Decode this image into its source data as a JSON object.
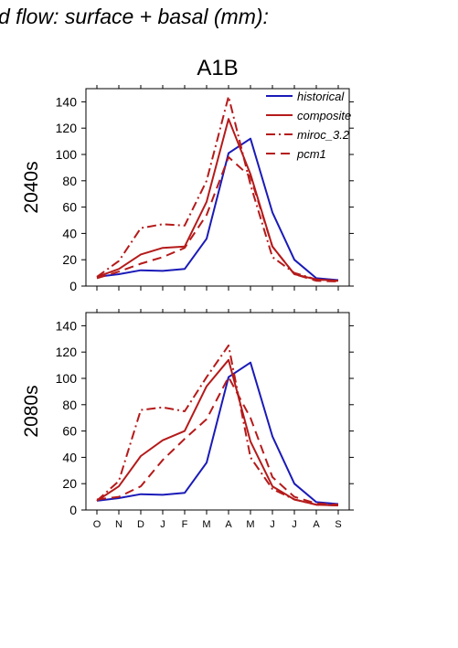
{
  "figure": {
    "title": "d flow: surface + basal (mm):",
    "panel_title": "A1B"
  },
  "chart_data": [
    {
      "type": "line",
      "row_label": "2040s",
      "categories": [
        "O",
        "N",
        "D",
        "J",
        "F",
        "M",
        "A",
        "M",
        "J",
        "J",
        "A",
        "S"
      ],
      "ylim": [
        0,
        150
      ],
      "yticks": [
        0,
        20,
        40,
        60,
        80,
        100,
        120,
        140
      ],
      "show_x_tick_labels": false,
      "legend": "top-right",
      "grid": false,
      "series": [
        {
          "name": "historical",
          "color": "#1a1ab8",
          "dash": "solid",
          "values": [
            7,
            9,
            12,
            11.5,
            13,
            36,
            101,
            112,
            56,
            20,
            6,
            4.5
          ]
        },
        {
          "name": "composite",
          "color": "#b51a1a",
          "dash": "solid",
          "values": [
            7,
            13,
            24,
            29,
            30,
            64,
            127,
            85,
            30,
            9,
            5,
            4
          ]
        },
        {
          "name": "miroc_3.2",
          "color": "#b51a1a",
          "dash": "dashdot",
          "values": [
            7,
            19,
            44,
            47,
            46,
            80,
            144,
            77,
            22,
            10,
            5,
            4
          ]
        },
        {
          "name": "pcm1",
          "color": "#b51a1a",
          "dash": "dash",
          "values": [
            6,
            11,
            17,
            22,
            29,
            54,
            98,
            83,
            30,
            9,
            4,
            3.5
          ]
        }
      ]
    },
    {
      "type": "line",
      "row_label": "2080s",
      "categories": [
        "O",
        "N",
        "D",
        "J",
        "F",
        "M",
        "A",
        "M",
        "J",
        "J",
        "A",
        "S"
      ],
      "ylim": [
        0,
        150
      ],
      "yticks": [
        0,
        20,
        40,
        60,
        80,
        100,
        120,
        140
      ],
      "show_x_tick_labels": true,
      "legend": "none",
      "grid": false,
      "series": [
        {
          "name": "historical",
          "color": "#1a1ab8",
          "dash": "solid",
          "values": [
            7,
            9,
            12,
            11.5,
            13,
            36,
            101,
            112,
            56,
            20,
            6,
            4.5
          ]
        },
        {
          "name": "composite",
          "color": "#b51a1a",
          "dash": "solid",
          "values": [
            7,
            18,
            41,
            53,
            60,
            94,
            114,
            52,
            18,
            8,
            4,
            3.5
          ]
        },
        {
          "name": "miroc_3.2",
          "color": "#b51a1a",
          "dash": "dashdot",
          "values": [
            7,
            22,
            76,
            78,
            75,
            101,
            125,
            40,
            16,
            8,
            4,
            3.5
          ]
        },
        {
          "name": "pcm1",
          "color": "#b51a1a",
          "dash": "dash",
          "values": [
            8,
            10,
            18,
            38,
            54,
            69,
            101,
            70,
            25,
            10,
            5,
            4
          ]
        }
      ]
    }
  ]
}
